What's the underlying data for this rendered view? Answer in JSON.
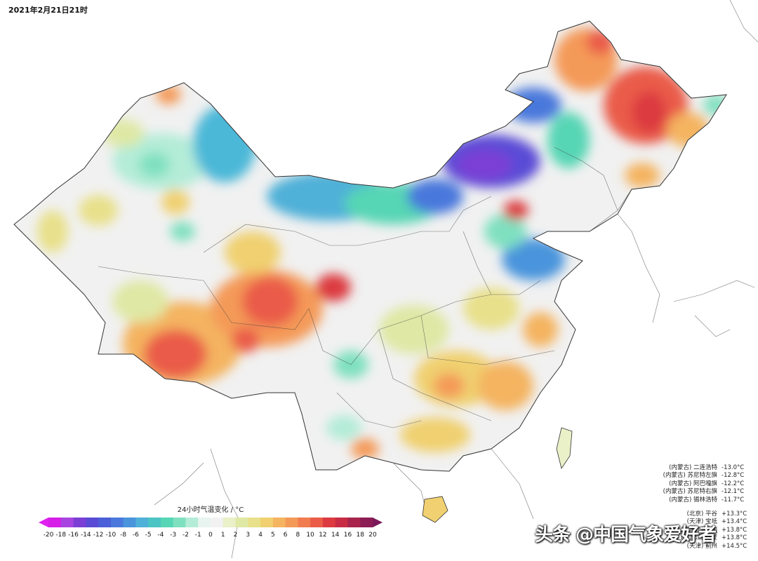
{
  "header": {
    "timestamp": "2021年2月21日21时"
  },
  "legend": {
    "title": "24小时气温变化 / °C",
    "ticks": [
      "-20",
      "-18",
      "-16",
      "-14",
      "-12",
      "-10",
      "-8",
      "-6",
      "-5",
      "-4",
      "-3",
      "-2",
      "-1",
      "0",
      "1",
      "2",
      "3",
      "4",
      "5",
      "6",
      "8",
      "10",
      "12",
      "14",
      "16",
      "18",
      "20"
    ],
    "colors": [
      "#d61ee8",
      "#a845e0",
      "#7b3fd6",
      "#5a4bd6",
      "#4a5fd8",
      "#4a78dc",
      "#4a94dc",
      "#4fb0d8",
      "#4cc4c4",
      "#56d6b4",
      "#7fe0c0",
      "#b4ecd8",
      "#e8f4f0",
      "#f2f2f2",
      "#eaf0c8",
      "#dfe8a4",
      "#e8e08a",
      "#f0d070",
      "#f4b460",
      "#f49a58",
      "#f07c50",
      "#ea5c48",
      "#dc3a40",
      "#c82c44",
      "#a8244c",
      "#8c1c54"
    ]
  },
  "stations_cold": [
    {
      "name": "(内蒙古) 二连浩特",
      "value": "-13.0°C"
    },
    {
      "name": "(内蒙古) 苏尼特左旗",
      "value": "-12.8°C"
    },
    {
      "name": "(内蒙古) 阿巴嘎旗",
      "value": "-12.2°C"
    },
    {
      "name": "(内蒙古) 苏尼特右旗",
      "value": "-12.1°C"
    },
    {
      "name": "(内蒙古) 锡林浩特",
      "value": "-11.7°C"
    }
  ],
  "stations_warm": [
    {
      "name": "(北京) 平谷",
      "value": "+13.3°C"
    },
    {
      "name": "(天津) 宝坻",
      "value": "+13.4°C"
    },
    {
      "name": "(黑龙江) 林甸",
      "value": "+13.8°C"
    },
    {
      "name": "(黑龙江) 杜蒙",
      "value": "+13.8°C"
    },
    {
      "name": "(天津) 蓟州",
      "value": "+14.5°C"
    }
  ],
  "watermark": "头条 @中国气象爱好者",
  "colors": {
    "cold_core": "#5a3fd0",
    "warm_core": "#e04848",
    "neutral": "#f2f2f2"
  }
}
